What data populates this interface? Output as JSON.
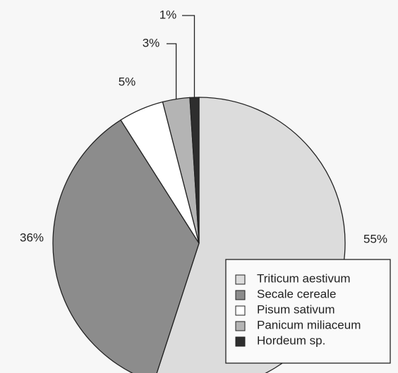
{
  "chart_data": {
    "type": "pie",
    "categories": [
      "Triticum aestivum",
      "Secale cereale",
      "Pisum sativum",
      "Panicum miliaceum",
      "Hordeum sp."
    ],
    "values": [
      55,
      36,
      5,
      3,
      1
    ],
    "value_labels": [
      "55%",
      "36%",
      "5%",
      "3%",
      "1%"
    ],
    "colors": [
      "#dcdcdc",
      "#8c8c8c",
      "#ffffff",
      "#b4b4b4",
      "#2e2e2e"
    ]
  }
}
